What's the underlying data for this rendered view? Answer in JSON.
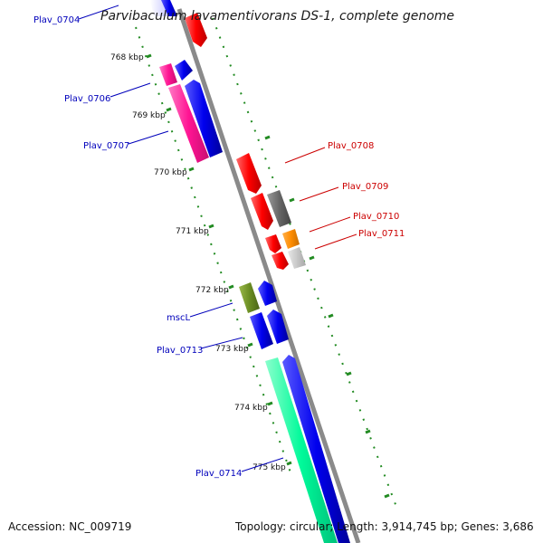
{
  "title": "Parvibaculum lavamentivorans DS-1, complete genome",
  "accession": "Accession: NC_009719",
  "summary": "Topology: circular; Length: 3,914,745 bp; Genes: 3,686",
  "ticks": [
    "768 kbp",
    "769 kbp",
    "770 kbp",
    "771 kbp",
    "772 kbp",
    "773 kbp",
    "774 kbp",
    "775 kbp"
  ],
  "gene_labels": [
    "Plav_0704",
    "Plav_0706",
    "Plav_0707",
    "Plav_0708",
    "Plav_0709",
    "Plav_0710",
    "Plav_0711",
    "mscL",
    "Plav_0713",
    "Plav_0714"
  ],
  "colors": {
    "forward_label": "#0000bb",
    "reverse_label": "#cc0000",
    "blue": "#0000ee",
    "pink": "#ff1493",
    "red": "#ff0000",
    "gray": "#666666",
    "orange": "#ff8c00",
    "olive": "#6b8e23",
    "teal": "#00fa9a",
    "tick": "#228b22",
    "backbone": "#888888"
  }
}
